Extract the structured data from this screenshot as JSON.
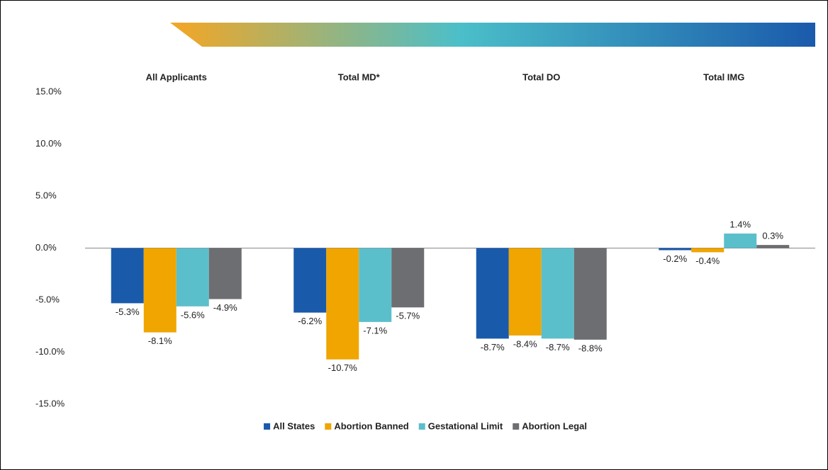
{
  "chart_data": {
    "type": "bar",
    "categories": [
      "All Applicants",
      "Total MD*",
      "Total DO",
      "Total IMG"
    ],
    "series": [
      {
        "name": "All States",
        "color": "#1a5aab",
        "values": [
          -5.3,
          -6.2,
          -8.7,
          -0.2
        ],
        "value_labels": [
          "-5.3%",
          "-6.2%",
          "-8.7%",
          "-0.2%"
        ]
      },
      {
        "name": "Abortion Banned",
        "color": "#f0a500",
        "values": [
          -8.1,
          -10.7,
          -8.4,
          -0.4
        ],
        "value_labels": [
          "-8.1%",
          "-10.7%",
          "-8.4%",
          "-0.4%"
        ]
      },
      {
        "name": "Gestational Limit",
        "color": "#5bbfcb",
        "values": [
          -5.6,
          -7.1,
          -8.7,
          1.4
        ],
        "value_labels": [
          "-5.6%",
          "-7.1%",
          "-8.7%",
          "1.4%"
        ]
      },
      {
        "name": "Abortion Legal",
        "color": "#6d6e71",
        "values": [
          -4.9,
          -5.7,
          -8.8,
          0.3
        ],
        "value_labels": [
          "-4.9%",
          "-5.7%",
          "-8.8%",
          "0.3%"
        ]
      }
    ],
    "ylim": [
      -15,
      15
    ],
    "yticks": [
      {
        "value": 15,
        "label": "15.0%"
      },
      {
        "value": 10,
        "label": "10.0%"
      },
      {
        "value": 5,
        "label": "5.0%"
      },
      {
        "value": 0,
        "label": "0.0%"
      },
      {
        "value": -5,
        "label": "-5.0%"
      },
      {
        "value": -10,
        "label": "-10.0%"
      },
      {
        "value": -15,
        "label": "-15.0%"
      }
    ],
    "grid": false,
    "legend": "bottom"
  }
}
